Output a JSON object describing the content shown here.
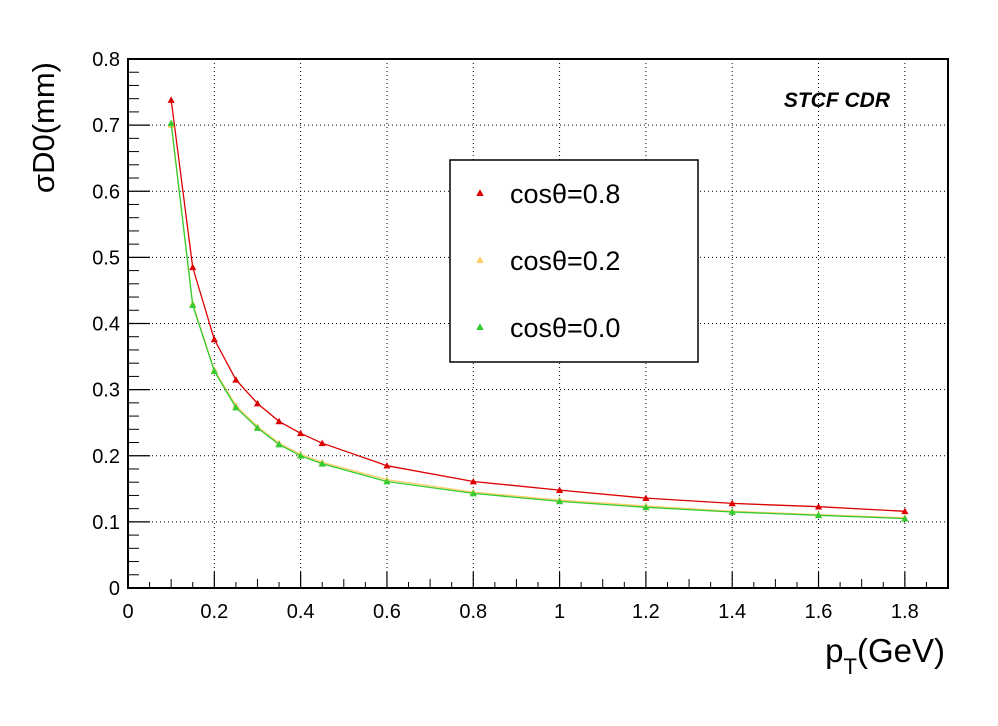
{
  "chart_data": {
    "type": "line",
    "xlabel_main": "p",
    "xlabel_sub": "T",
    "xlabel_unit": "(GeV)",
    "ylabel": "σD0(mm)",
    "annotation": "STCF CDR",
    "xlim": [
      0,
      1.9
    ],
    "ylim": [
      0,
      0.8
    ],
    "x_ticks": [
      "0",
      "0.2",
      "0.4",
      "0.6",
      "0.8",
      "1",
      "1.2",
      "1.4",
      "1.6",
      "1.8"
    ],
    "x_tick_values": [
      0,
      0.2,
      0.4,
      0.6,
      0.8,
      1.0,
      1.2,
      1.4,
      1.6,
      1.8
    ],
    "y_ticks": [
      "0",
      "0.1",
      "0.2",
      "0.3",
      "0.4",
      "0.5",
      "0.6",
      "0.7",
      "0.8"
    ],
    "y_tick_values": [
      0,
      0.1,
      0.2,
      0.3,
      0.4,
      0.5,
      0.6,
      0.7,
      0.8
    ],
    "grid": true,
    "legend_position": "upper-center",
    "x": [
      0.1,
      0.15,
      0.2,
      0.25,
      0.3,
      0.35,
      0.4,
      0.45,
      0.6,
      0.8,
      1.0,
      1.2,
      1.4,
      1.6,
      1.8
    ],
    "series": [
      {
        "name": "cosθ=0.8",
        "color": "#dd0000",
        "values": [
          0.738,
          0.485,
          0.376,
          0.315,
          0.279,
          0.252,
          0.234,
          0.219,
          0.185,
          0.161,
          0.148,
          0.136,
          0.128,
          0.123,
          0.116
        ]
      },
      {
        "name": "cosθ=0.2",
        "color": "#ffcc66",
        "values": [
          0.7,
          0.43,
          0.33,
          0.276,
          0.244,
          0.219,
          0.202,
          0.19,
          0.164,
          0.145,
          0.133,
          0.124,
          0.116,
          0.111,
          0.106
        ]
      },
      {
        "name": "cosθ=0.0",
        "color": "#33cc33",
        "values": [
          0.703,
          0.428,
          0.328,
          0.273,
          0.242,
          0.217,
          0.2,
          0.188,
          0.161,
          0.143,
          0.131,
          0.122,
          0.115,
          0.11,
          0.105
        ]
      }
    ]
  }
}
